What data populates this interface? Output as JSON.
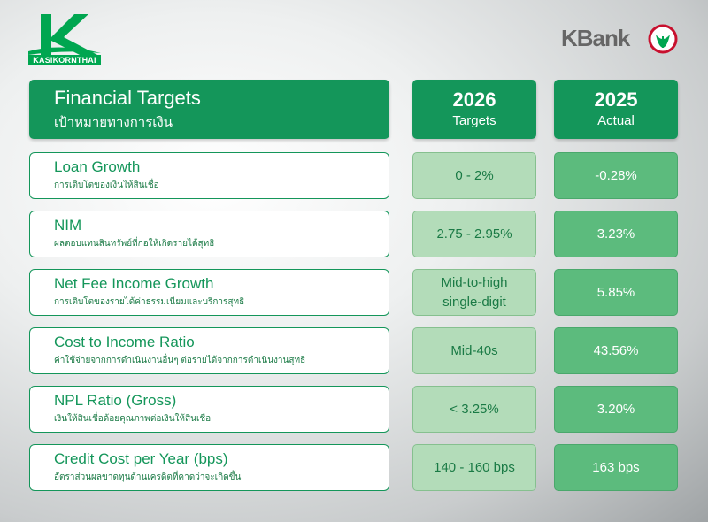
{
  "logo": {
    "brand": "KASIKORNTHAI",
    "bank": "KBank"
  },
  "header": {
    "title": "Financial Targets",
    "subtitle": "เป้าหมายทางการเงิน"
  },
  "columns": [
    {
      "year": "2026",
      "label": "Targets"
    },
    {
      "year": "2025",
      "label": "Actual"
    }
  ],
  "rows": [
    {
      "name": "Loan Growth",
      "thai": "การเติบโตของเงินให้สินเชื่อ",
      "target": "0 - 2%",
      "actual": "-0.28%"
    },
    {
      "name": "NIM",
      "thai": "ผลตอบแทนสินทรัพย์ที่ก่อให้เกิดรายได้สุทธิ",
      "target": "2.75 - 2.95%",
      "actual": "3.23%"
    },
    {
      "name": "Net Fee Income Growth",
      "thai": "การเติบโตของรายได้ค่าธรรมเนียมและบริการสุทธิ",
      "target": "Mid-to-high single-digit",
      "actual": "5.85%"
    },
    {
      "name": "Cost to Income Ratio",
      "thai": "ค่าใช้จ่ายจากการดำเนินงานอื่นๆ ต่อรายได้จากการดำเนินงานสุทธิ",
      "target": "Mid-40s",
      "actual": "43.56%"
    },
    {
      "name": "NPL Ratio (Gross)",
      "thai": "เงินให้สินเชื่อด้อยคุณภาพต่อเงินให้สินเชื่อ",
      "target": "< 3.25%",
      "actual": "3.20%"
    },
    {
      "name": "Credit Cost per Year (bps)",
      "thai": "อัตราส่วนผลขาดทุนด้านเครดิตที่คาดว่าจะเกิดขึ้น",
      "target": "140 - 160 bps",
      "actual": "163 bps"
    }
  ]
}
